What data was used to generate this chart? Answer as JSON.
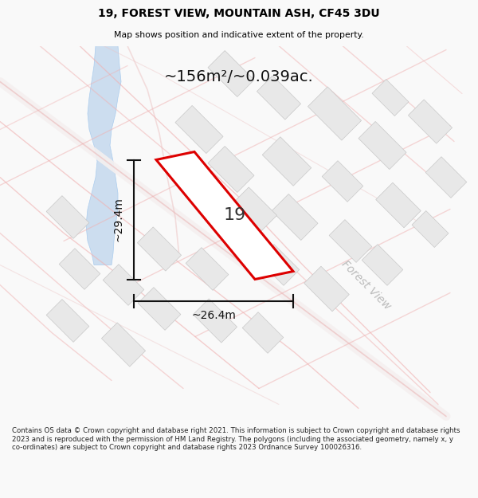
{
  "title_line1": "19, FOREST VIEW, MOUNTAIN ASH, CF45 3DU",
  "title_line2": "Map shows position and indicative extent of the property.",
  "area_text": "~156m²/~0.039ac.",
  "dim_height": "~29.4m",
  "dim_width": "~26.4m",
  "plot_label": "19",
  "street_label": "Forest View",
  "footer_text": "Contains OS data © Crown copyright and database right 2021. This information is subject to Crown copyright and database rights 2023 and is reproduced with the permission of HM Land Registry. The polygons (including the associated geometry, namely x, y co-ordinates) are subject to Crown copyright and database rights 2023 Ordnance Survey 100026316.",
  "bg_color": "#f9f9f9",
  "map_bg": "#ffffff",
  "road_color": "#f0b0b0",
  "road_color_med": "#ecc0c0",
  "building_fill": "#e8e8e8",
  "building_edge": "#c8c8c8",
  "plot_fill": "#ffffff",
  "plot_edge": "#dd0000",
  "water_fill": "#ccddef",
  "water_edge": "#aaccee",
  "dim_color": "#111111",
  "street_label_color": "#bbbbbb",
  "footer_color": "#222222"
}
